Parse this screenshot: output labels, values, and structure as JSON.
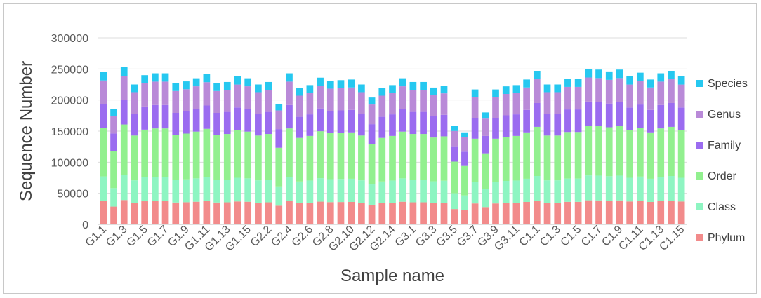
{
  "chart_data": {
    "type": "bar",
    "stacked": true,
    "xlabel": "Sample name",
    "ylabel": "Sequence Number",
    "ylim": [
      0,
      300000
    ],
    "yticks": [
      "0",
      "50000",
      "100000",
      "150000",
      "200000",
      "250000",
      "300000"
    ],
    "grid": true,
    "legend_position": "right",
    "categories": [
      "G1.1",
      "G1.2",
      "G1.3",
      "G1.4",
      "G1.5",
      "G1.6",
      "G1.7",
      "G1.8",
      "G1.9",
      "G1.10",
      "G1.11",
      "G1.12",
      "G1.13",
      "G1.14",
      "G1.15",
      "G2.1",
      "G2.2",
      "G2.3",
      "G2.4",
      "G2.5",
      "G2.6",
      "G2.7",
      "G2.8",
      "G2.9",
      "G2.10",
      "G2.11",
      "G2.12",
      "G2.13",
      "G2.14",
      "G2.15",
      "G3.1",
      "G3.2",
      "G3.3",
      "G3.4",
      "G3.5",
      "G3.6",
      "G3.7",
      "G3.8",
      "G3.9",
      "G3.10",
      "G3.11",
      "G3.12",
      "C1.1",
      "C1.2",
      "C1.3",
      "C1.4",
      "C1.5",
      "C1.6",
      "C1.7",
      "C1.8",
      "C1.9",
      "C1.10",
      "C1.11",
      "C1.12",
      "C1.13",
      "C1.14",
      "C1.15"
    ],
    "labeled_categories": [
      "G1.1",
      "G1.3",
      "G1.5",
      "G1.7",
      "G1.9",
      "G1.11",
      "G1.13",
      "G1.15",
      "G2.2",
      "G2.4",
      "G2.6",
      "G2.8",
      "G2.10",
      "G2.12",
      "G2.14",
      "G3.1",
      "G3.3",
      "G3.5",
      "G3.7",
      "G3.9",
      "G3.11",
      "C1.1",
      "C1.3",
      "C1.5",
      "C1.7",
      "C1.9",
      "C1.11",
      "C1.13",
      "C1.15"
    ],
    "totals": [
      245000,
      185000,
      253000,
      225000,
      240000,
      243000,
      243000,
      227000,
      230000,
      235000,
      242000,
      227000,
      229000,
      238000,
      235000,
      225000,
      229000,
      194000,
      243000,
      219000,
      224000,
      236000,
      231000,
      232000,
      233000,
      225000,
      204000,
      219000,
      224000,
      235000,
      229000,
      229000,
      220000,
      223000,
      159000,
      148000,
      217000,
      180000,
      217000,
      222000,
      224000,
      233000,
      247000,
      225000,
      225000,
      234000,
      234000,
      250000,
      249000,
      246000,
      249000,
      238000,
      244000,
      233000,
      243000,
      247000,
      238000
    ],
    "series": [
      {
        "name": "Phylum",
        "color": "#f28b8b",
        "fraction": 0.155
      },
      {
        "name": "Class",
        "color": "#8ef5c2",
        "fraction": 0.16
      },
      {
        "name": "Order",
        "color": "#92f08f",
        "fraction": 0.32
      },
      {
        "name": "Family",
        "color": "#9b6cf0",
        "fraction": 0.155
      },
      {
        "name": "Genus",
        "color": "#b98ad8",
        "fraction": 0.155
      },
      {
        "name": "Species",
        "color": "#26c8f0",
        "fraction": 0.055
      }
    ],
    "legend": [
      "Species",
      "Genus",
      "Family",
      "Order",
      "Class",
      "Phylum"
    ]
  }
}
